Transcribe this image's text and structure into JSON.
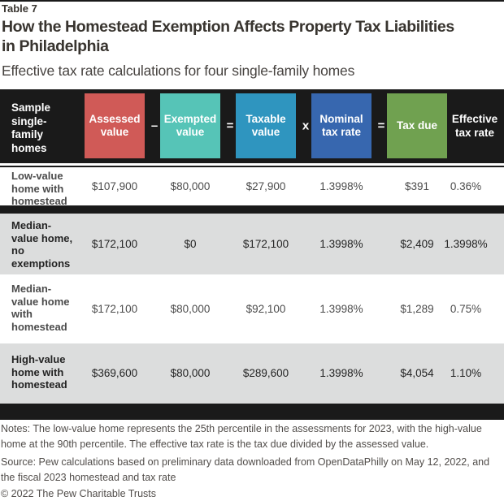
{
  "palette": {
    "ink-black": "#1a1a1a",
    "title-ink": "#38342f",
    "subtitle-ink": "#474340",
    "note-ink": "#514d4a",
    "dim-ink": "#4b4b4b",
    "dark-ink": "#232323",
    "row-shade": "#dcdddd",
    "header-text": "#ffffff"
  },
  "figure": {
    "tag": "Table 7",
    "title_line1": "How the Homestead Exemption Affects Property Tax Liabilities",
    "title_line2": "in Philadelphia",
    "subtitle": "Effective tax rate calculations for four single-family homes"
  },
  "header": {
    "row_label": "Sample single-family homes",
    "columns": [
      {
        "label": "Assessed value",
        "color": "#d05a57"
      },
      {
        "label": "Exempted value",
        "color": "#56c4b7"
      },
      {
        "label": "Taxable value",
        "color": "#2f95bf"
      },
      {
        "label": "Nominal tax rate",
        "color": "#3767af"
      },
      {
        "label": "Tax due",
        "color": "#70a150"
      },
      {
        "label": "Effective tax rate",
        "color": "#1a1a1a"
      }
    ],
    "operators": [
      "–",
      "=",
      "x",
      "="
    ]
  },
  "table": {
    "rows": [
      {
        "label": "Low-value home with homestead",
        "values": [
          "$107,900",
          "$80,000",
          "$27,900",
          "1.3998%",
          "$391",
          "0.36%"
        ]
      },
      {
        "label": "Median-value home, no exemptions",
        "values": [
          "$172,100",
          "$0",
          "$172,100",
          "1.3998%",
          "$2,409",
          "1.3998%"
        ]
      },
      {
        "label": "Median-value home with homestead",
        "values": [
          "$172,100",
          "$80,000",
          "$92,100",
          "1.3998%",
          "$1,289",
          "0.75%"
        ]
      },
      {
        "label": "High-value home with homestead",
        "values": [
          "$369,600",
          "$80,000",
          "$289,600",
          "1.3998%",
          "$4,054",
          "1.10%"
        ]
      }
    ]
  },
  "footer": {
    "notes": "Notes: The low-value home represents the 25th percentile in the assessments for 2023, with the high-value home at the 90th percentile. The effective tax rate is the tax due divided by the assessed value.",
    "source": "Source: Pew calculations based on preliminary data downloaded from OpenDataPhilly on May 12, 2022, and the fiscal 2023 homestead and tax rate",
    "copyright": "© 2022 The Pew Charitable Trusts"
  },
  "chart_data": {
    "type": "table",
    "title": "How the Homestead Exemption Affects Property Tax Liabilities in Philadelphia",
    "subtitle": "Effective tax rate calculations for four single-family homes",
    "columns": [
      "Sample single-family homes",
      "Assessed value",
      "Exempted value",
      "Taxable value",
      "Nominal tax rate",
      "Tax due",
      "Effective tax rate"
    ],
    "formula": "Assessed value − Exempted value = Taxable value × Nominal tax rate = Tax due",
    "rows": [
      [
        "Low-value home with homestead",
        "$107,900",
        "$80,000",
        "$27,900",
        "1.3998%",
        "$391",
        "0.36%"
      ],
      [
        "Median-value home, no exemptions",
        "$172,100",
        "$0",
        "$172,100",
        "1.3998%",
        "$2,409",
        "1.3998%"
      ],
      [
        "Median-value home with homestead",
        "$172,100",
        "$80,000",
        "$92,100",
        "1.3998%",
        "$1,289",
        "0.75%"
      ],
      [
        "High-value home with homestead",
        "$369,600",
        "$80,000",
        "$289,600",
        "1.3998%",
        "$4,054",
        "1.10%"
      ]
    ]
  }
}
